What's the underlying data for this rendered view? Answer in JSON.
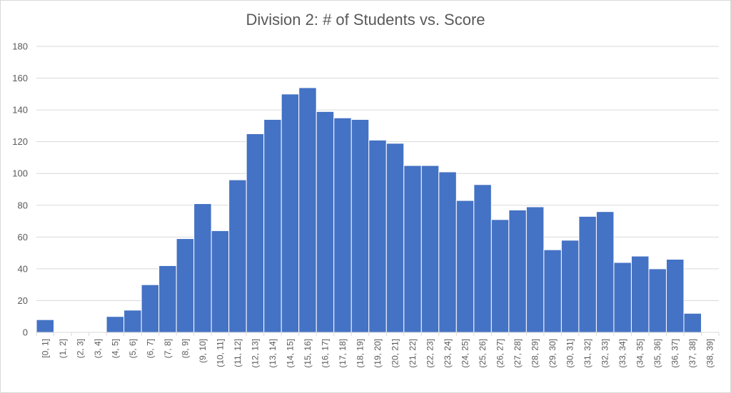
{
  "chart_data": {
    "type": "bar",
    "title": "Division 2: # of Students vs. Score",
    "xlabel": "",
    "ylabel": "",
    "ylim": [
      0,
      180
    ],
    "yticks": [
      0,
      20,
      40,
      60,
      80,
      100,
      120,
      140,
      160,
      180
    ],
    "grid": true,
    "legend": "none",
    "bar_color": "#4472c4",
    "categories": [
      "[0, 1]",
      "(1, 2]",
      "(2, 3]",
      "(3, 4]",
      "(4, 5]",
      "(5, 6]",
      "(6, 7]",
      "(7, 8]",
      "(8, 9]",
      "(9, 10]",
      "(10, 11]",
      "(11, 12]",
      "(12, 13]",
      "(13, 14]",
      "(14, 15]",
      "(15, 16]",
      "(16, 17]",
      "(17, 18]",
      "(18, 19]",
      "(19, 20]",
      "(20, 21]",
      "(21, 22]",
      "(22, 23]",
      "(23, 24]",
      "(24, 25]",
      "(25, 26]",
      "(26, 27]",
      "(27, 28]",
      "(28, 29]",
      "(29, 30]",
      "(30, 31]",
      "(31, 32]",
      "(32, 33]",
      "(33, 34]",
      "(34, 35]",
      "(35, 36]",
      "(36, 37]",
      "(37, 38]",
      "(38, 39]"
    ],
    "values": [
      8,
      0,
      0,
      0,
      10,
      14,
      30,
      42,
      59,
      81,
      64,
      96,
      125,
      134,
      150,
      154,
      139,
      135,
      134,
      121,
      119,
      105,
      105,
      101,
      83,
      93,
      71,
      77,
      79,
      52,
      58,
      73,
      76,
      44,
      48,
      40,
      46,
      12,
      0
    ]
  }
}
